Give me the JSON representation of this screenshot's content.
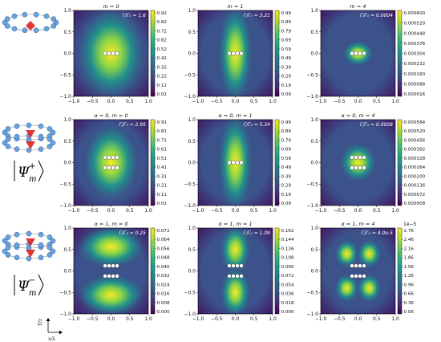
{
  "figure": {
    "row_labels": [
      {
        "psi": "Ψ",
        "sup": "+",
        "sub": "m"
      },
      {
        "psi": "Ψ",
        "sup": "−",
        "sub": "m"
      }
    ],
    "axis_labels": {
      "y": "Y/z",
      "x": "x/λ"
    }
  },
  "chart_data": [
    {
      "type": "heatmap",
      "row": 0,
      "col": 0,
      "title": "m = 0",
      "annotation": "Γ/Γ₀ = 1.6",
      "pattern": "single",
      "xlim": [
        -1,
        1
      ],
      "ylim": [
        -1,
        1
      ],
      "xticks": [
        "−1.0",
        "−0.5",
        "0.0",
        "0.5",
        "1.0"
      ],
      "yticks": [
        "1.0",
        "0.5",
        "0.0",
        "−0.5",
        "−1.0"
      ],
      "colorbar": [
        "0.92",
        "0.82",
        "0.72",
        "0.62",
        "0.52",
        "0.42",
        "0.32",
        "0.22",
        "0.12",
        "0.02"
      ],
      "exponent": ""
    },
    {
      "type": "heatmap",
      "row": 0,
      "col": 1,
      "title": "m = 1",
      "annotation": "Γ/Γ₀ = 3.21",
      "pattern": "vertical",
      "xlim": [
        -1,
        1
      ],
      "ylim": [
        -1,
        1
      ],
      "xticks": [
        "−1.0",
        "−0.5",
        "0.0",
        "0.5",
        "1.0"
      ],
      "yticks": [
        "1.0",
        "0.5",
        "0.0",
        "−0.5",
        "−1.0"
      ],
      "colorbar": [
        "0.99",
        "0.89",
        "0.79",
        "0.69",
        "0.59",
        "0.49",
        "0.39",
        "0.29",
        "0.19",
        "0.09"
      ],
      "exponent": ""
    },
    {
      "type": "heatmap",
      "row": 0,
      "col": 2,
      "title": "m = 4",
      "annotation": "Γ/Γ₀ = 0.0004",
      "pattern": "tight",
      "xlim": [
        -1,
        1
      ],
      "ylim": [
        -1,
        1
      ],
      "xticks": [
        "−1.0",
        "−0.5",
        "0.0",
        "0.5",
        "1.0"
      ],
      "yticks": [
        "1.0",
        "0.5",
        "0.0",
        "−0.5",
        "−1.0"
      ],
      "colorbar": [
        "0.000600",
        "0.000520",
        "0.000448",
        "0.000376",
        "0.000304",
        "0.000232",
        "0.000160",
        "0.000088",
        "0.000016"
      ],
      "exponent": ""
    },
    {
      "type": "heatmap",
      "row": 1,
      "col": 0,
      "title": "α = 0, m = 0",
      "annotation": "Γ/Γ₀ = 2.95",
      "pattern": "double",
      "xlim": [
        -1,
        1
      ],
      "ylim": [
        -1,
        1
      ],
      "xticks": [
        "−1.0",
        "−0.5",
        "0.0",
        "0.5",
        "1.0"
      ],
      "yticks": [
        "1.0",
        "0.5",
        "0.0",
        "−0.5",
        "−1.0"
      ],
      "colorbar": [
        "0.91",
        "0.81",
        "0.71",
        "0.61",
        "0.51",
        "0.41",
        "0.31",
        "0.21",
        "0.11",
        "0.01"
      ],
      "exponent": ""
    },
    {
      "type": "heatmap",
      "row": 1,
      "col": 1,
      "title": "α = 0, m = 1",
      "annotation": "Γ/Γ₀ = 5.34",
      "pattern": "vertical",
      "xlim": [
        -1,
        1
      ],
      "ylim": [
        -1,
        1
      ],
      "xticks": [
        "−1.0",
        "−0.5",
        "0.0",
        "0.5",
        "1.0"
      ],
      "yticks": [
        "1.0",
        "0.5",
        "0.0",
        "−0.5",
        "−1.0"
      ],
      "colorbar": [
        "0.99",
        "0.89",
        "0.79",
        "0.69",
        "0.59",
        "0.49",
        "0.39",
        "0.29",
        "0.19",
        "0.09"
      ],
      "exponent": ""
    },
    {
      "type": "heatmap",
      "row": 1,
      "col": 2,
      "title": "α = 0, m = 4",
      "annotation": "Γ/Γ₀ = 0.0008",
      "pattern": "tight2",
      "xlim": [
        -1,
        1
      ],
      "ylim": [
        -1,
        1
      ],
      "xticks": [
        "−1.0",
        "−0.5",
        "0.0",
        "0.5",
        "1.0"
      ],
      "yticks": [
        "1.0",
        "0.5",
        "0.0",
        "−0.5",
        "−1.0"
      ],
      "colorbar": [
        "0.000584",
        "0.000520",
        "0.000456",
        "0.000392",
        "0.000328",
        "0.000264",
        "0.000200",
        "0.000136",
        "0.000072",
        "0.000008"
      ],
      "exponent": ""
    },
    {
      "type": "heatmap",
      "row": 2,
      "col": 0,
      "title": "α = 1, m = 0",
      "annotation": "Γ/Γ₀ = 0.25",
      "pattern": "split",
      "xlim": [
        -1,
        1
      ],
      "ylim": [
        -1,
        1
      ],
      "xticks": [
        "−1.0",
        "−0.5",
        "0.0",
        "0.5",
        "1.0"
      ],
      "yticks": [
        "1.0",
        "0.5",
        "0.0",
        "−0.5",
        "−1.0"
      ],
      "colorbar": [
        "0.072",
        "0.064",
        "0.056",
        "0.048",
        "0.040",
        "0.032",
        "0.024",
        "0.016",
        "0.008",
        "0.000"
      ],
      "exponent": ""
    },
    {
      "type": "heatmap",
      "row": 2,
      "col": 1,
      "title": "α = 1, m = 1",
      "annotation": "Γ/Γ₀ = 1.09",
      "pattern": "vsplit",
      "xlim": [
        -1,
        1
      ],
      "ylim": [
        -1,
        1
      ],
      "xticks": [
        "−1.0",
        "−0.5",
        "0.0",
        "0.5",
        "1.0"
      ],
      "yticks": [
        "1.0",
        "0.5",
        "0.0",
        "−0.5",
        "−1.0"
      ],
      "colorbar": [
        "0.162",
        "0.144",
        "0.126",
        "0.108",
        "0.090",
        "0.072",
        "0.054",
        "0.036",
        "0.018",
        "0.000"
      ],
      "exponent": ""
    },
    {
      "type": "heatmap",
      "row": 2,
      "col": 2,
      "title": "α = 1, m = 4",
      "annotation": "Γ/Γ₀ = 4.0e-5",
      "pattern": "quad",
      "xlim": [
        -1,
        1
      ],
      "ylim": [
        -1,
        1
      ],
      "xticks": [
        "−1.0",
        "−0.5",
        "0.0",
        "0.5",
        "1.0"
      ],
      "yticks": [
        "1.0",
        "0.5",
        "0.0",
        "−0.5",
        "−1.0"
      ],
      "colorbar": [
        "2.76",
        "2.46",
        "2.16",
        "1.86",
        "1.56",
        "1.26",
        "0.96",
        "0.66",
        "0.36",
        "0.06"
      ],
      "exponent": "1e−5"
    }
  ],
  "colormap": [
    "#440154",
    "#482878",
    "#3e4989",
    "#31688e",
    "#26828e",
    "#1f9e89",
    "#35b779",
    "#6ece58",
    "#b5de2b",
    "#fde725"
  ]
}
